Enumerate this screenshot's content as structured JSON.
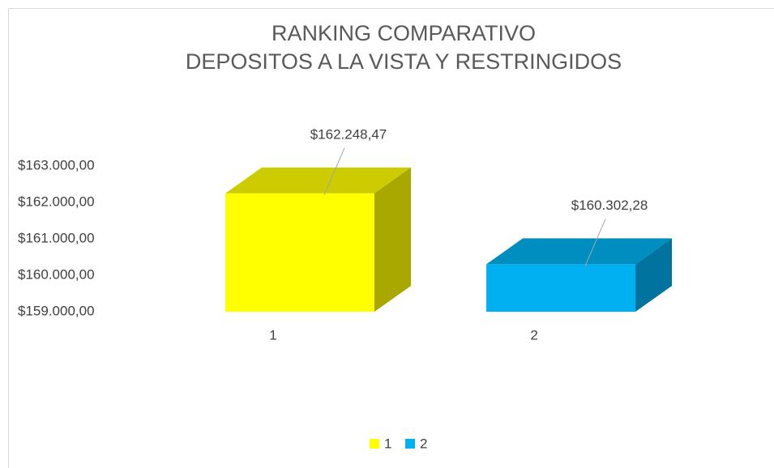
{
  "chart_data": {
    "type": "bar3d",
    "title": "RANKING COMPARATIVO",
    "subtitle": "DEPOSITOS A LA VISTA Y RESTRINGIDOS",
    "categories": [
      "1",
      "2"
    ],
    "values": [
      162248.47,
      160302.28
    ],
    "value_labels": [
      "$162.248,47",
      "$160.302,28"
    ],
    "colors": [
      "#ffff00",
      "#00b0f0"
    ],
    "ylim": [
      159000,
      163000
    ],
    "yticks": [
      {
        "value": 159000,
        "label": "$159.000,00"
      },
      {
        "value": 160000,
        "label": "$160.000,00"
      },
      {
        "value": 161000,
        "label": "$161.000,00"
      },
      {
        "value": 162000,
        "label": "$162.000,00"
      },
      {
        "value": 163000,
        "label": "$163.000,00"
      }
    ],
    "legend": "bottom"
  }
}
